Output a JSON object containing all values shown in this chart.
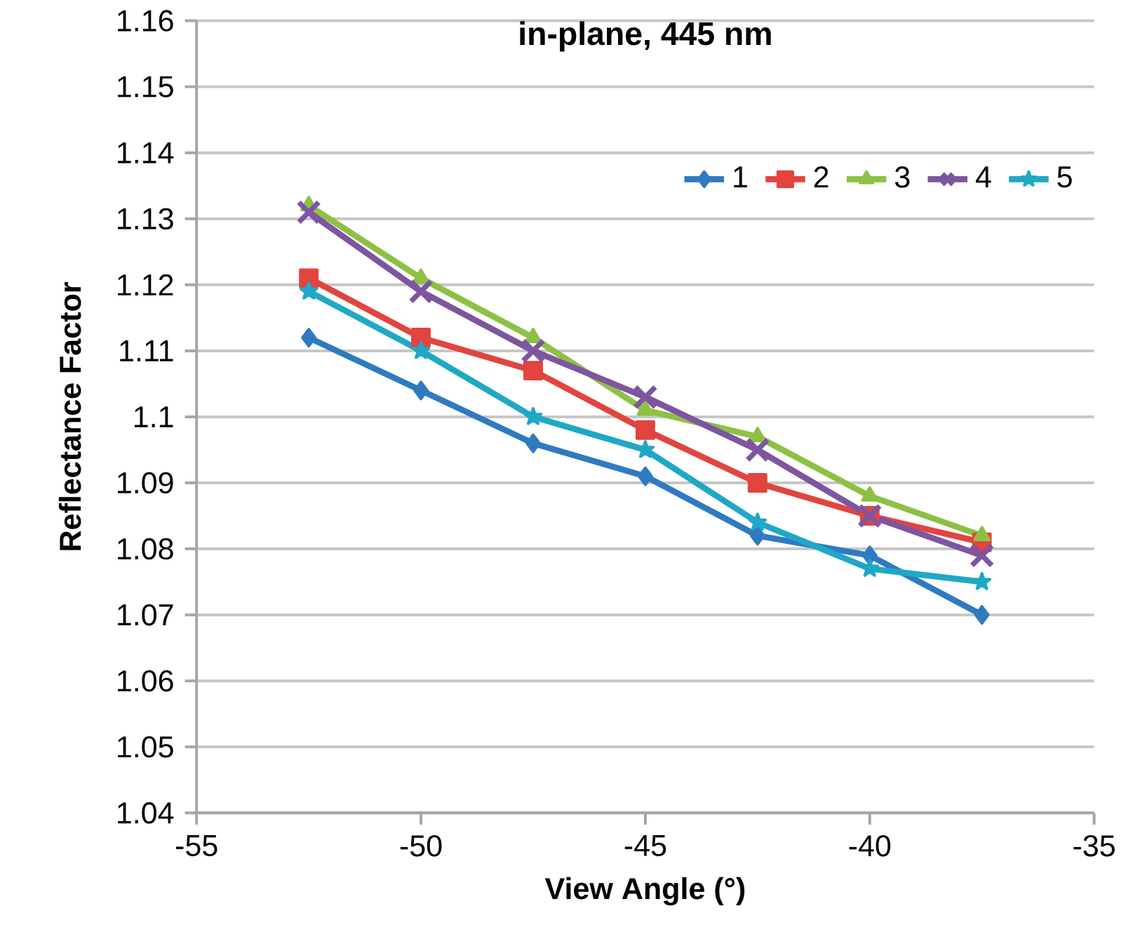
{
  "chart_data": {
    "type": "line",
    "title": "in-plane, 445 nm",
    "xlabel": "View Angle (°)",
    "ylabel": "Reflectance Factor",
    "x": [
      -52.5,
      -50,
      -47.5,
      -45,
      -42.5,
      -40,
      -37.5
    ],
    "series": [
      {
        "name": "1",
        "color": "#2f7ac0",
        "marker": "diamond",
        "values": [
          1.112,
          1.104,
          1.096,
          1.091,
          1.082,
          1.079,
          1.07
        ]
      },
      {
        "name": "2",
        "color": "#e2443f",
        "marker": "square",
        "values": [
          1.121,
          1.112,
          1.107,
          1.098,
          1.09,
          1.085,
          1.081
        ]
      },
      {
        "name": "3",
        "color": "#8dc044",
        "marker": "triangle",
        "values": [
          1.132,
          1.121,
          1.112,
          1.101,
          1.097,
          1.088,
          1.082
        ]
      },
      {
        "name": "4",
        "color": "#7d55a0",
        "marker": "cross",
        "values": [
          1.131,
          1.119,
          1.11,
          1.103,
          1.095,
          1.085,
          1.079
        ]
      },
      {
        "name": "5",
        "color": "#1fa8c6",
        "marker": "star",
        "values": [
          1.119,
          1.11,
          1.1,
          1.095,
          1.084,
          1.077,
          1.075
        ]
      }
    ],
    "xlim": [
      -55,
      -35
    ],
    "xticks": [
      -55,
      -50,
      -45,
      -40,
      -35
    ],
    "ylim": [
      1.04,
      1.16
    ],
    "yticks": [
      1.04,
      1.05,
      1.06,
      1.07,
      1.08,
      1.09,
      1.1,
      1.11,
      1.12,
      1.13,
      1.14,
      1.15,
      1.16
    ],
    "grid": "y",
    "legend": "top right",
    "line_style": "solid"
  }
}
